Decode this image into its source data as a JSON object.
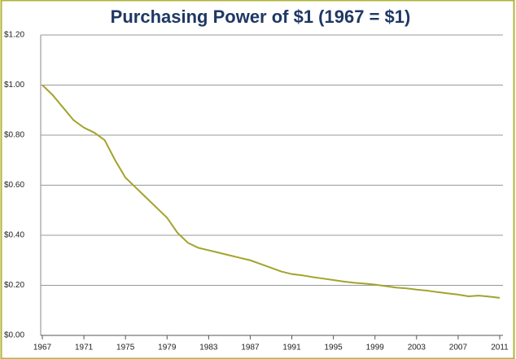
{
  "chart_data": {
    "type": "line",
    "title": "Purchasing Power of $1 (1967 = $1)",
    "x": [
      1967,
      1968,
      1969,
      1970,
      1971,
      1972,
      1973,
      1974,
      1975,
      1976,
      1977,
      1978,
      1979,
      1980,
      1981,
      1982,
      1983,
      1984,
      1985,
      1986,
      1987,
      1988,
      1989,
      1990,
      1991,
      1992,
      1993,
      1994,
      1995,
      1996,
      1997,
      1998,
      1999,
      2000,
      2001,
      2002,
      2003,
      2004,
      2005,
      2006,
      2007,
      2008,
      2009,
      2010,
      2011
    ],
    "series": [
      {
        "color": "#a3a32c",
        "values": [
          1.0,
          0.96,
          0.91,
          0.86,
          0.83,
          0.81,
          0.78,
          0.7,
          0.63,
          0.59,
          0.55,
          0.51,
          0.47,
          0.41,
          0.37,
          0.35,
          0.34,
          0.33,
          0.32,
          0.31,
          0.3,
          0.285,
          0.27,
          0.255,
          0.245,
          0.24,
          0.233,
          0.227,
          0.221,
          0.215,
          0.21,
          0.207,
          0.203,
          0.197,
          0.191,
          0.188,
          0.183,
          0.179,
          0.173,
          0.168,
          0.163,
          0.156,
          0.159,
          0.155,
          0.15
        ]
      }
    ],
    "xlim": [
      1967,
      2011
    ],
    "xticks": [
      1967,
      1971,
      1975,
      1979,
      1983,
      1987,
      1991,
      1995,
      1999,
      2003,
      2007,
      2011
    ],
    "ylim": [
      0,
      1.2
    ],
    "yticks": [
      {
        "value": 0,
        "label": "$0.00"
      },
      {
        "value": 0.2,
        "label": "$0.20"
      },
      {
        "value": 0.4,
        "label": "$0.40"
      },
      {
        "value": 0.6,
        "label": "$0.60"
      },
      {
        "value": 0.8,
        "label": "$0.80"
      },
      {
        "value": 1.0,
        "label": "$1.00"
      },
      {
        "value": 1.2,
        "label": "$1.20"
      }
    ],
    "grid": true
  }
}
